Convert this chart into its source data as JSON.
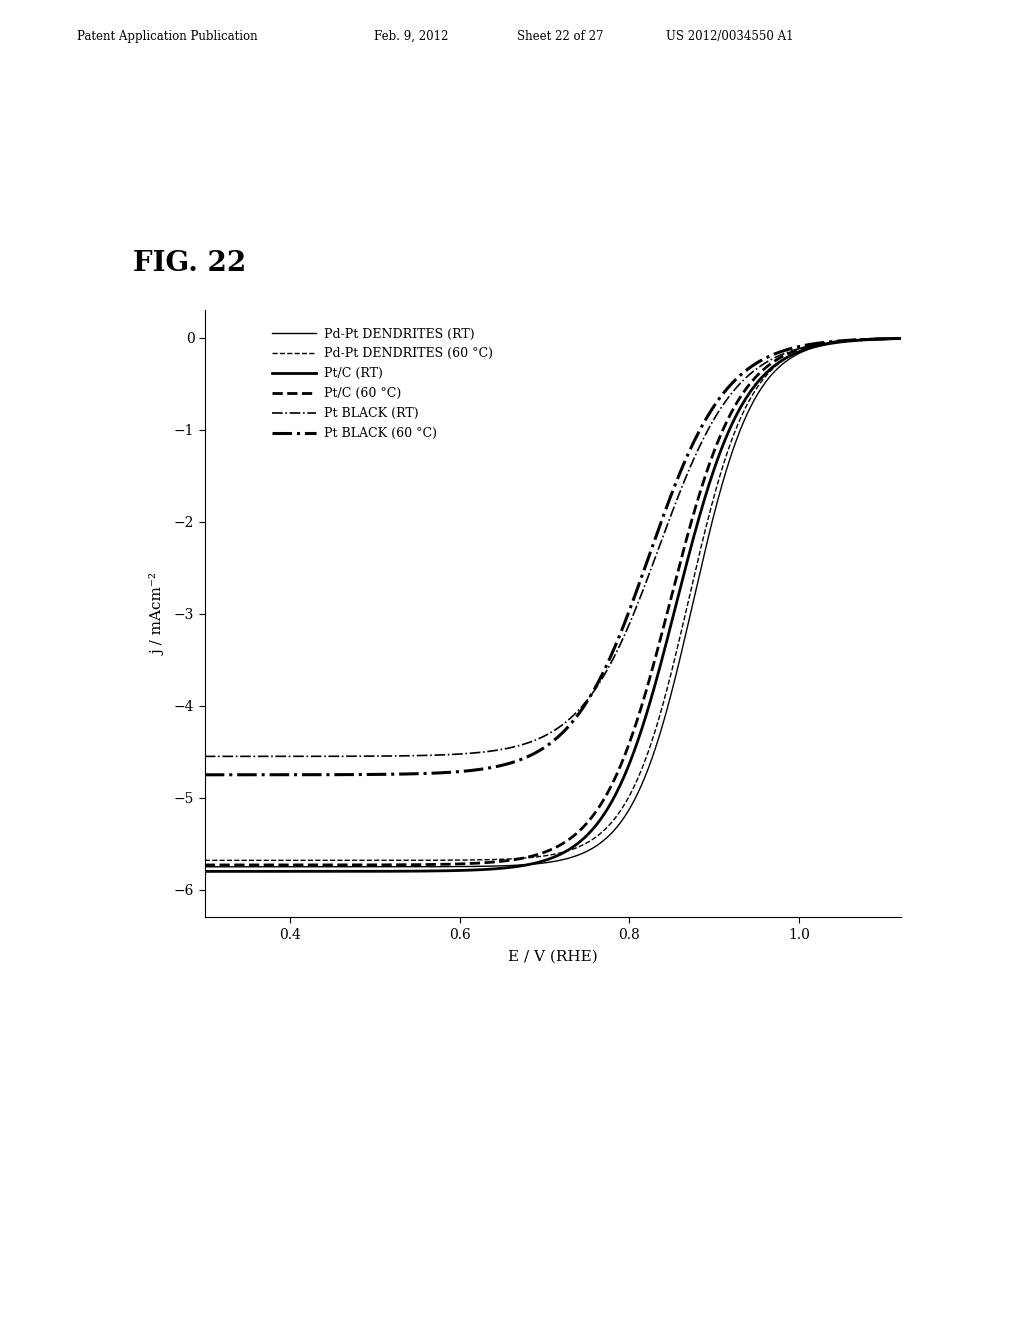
{
  "xlabel": "E / V (RHE)",
  "ylabel": "j / mAcm⁻²",
  "xlim": [
    0.3,
    1.12
  ],
  "ylim": [
    -6.3,
    0.3
  ],
  "xticks": [
    0.4,
    0.6,
    0.8,
    1.0
  ],
  "yticks": [
    0,
    -1,
    -2,
    -3,
    -4,
    -5,
    -6
  ],
  "background_color": "#ffffff",
  "header_text": "Patent Application Publication",
  "header_date": "Feb. 9, 2012",
  "header_sheet": "Sheet 22 of 27",
  "header_patent": "US 2012/0034550 A1",
  "fig_label": "FIG. 22",
  "legend_entries": [
    {
      "label": "Pd-Pt DENDRITES (RT)",
      "linestyle": "-",
      "linewidth": 1.0,
      "color": "#000000"
    },
    {
      "label": "Pd-Pt DENDRITES (60 °C)",
      "linestyle": "--",
      "linewidth": 1.0,
      "color": "#000000"
    },
    {
      "label": "Pt/C (RT)",
      "linestyle": "-",
      "linewidth": 2.0,
      "color": "#000000"
    },
    {
      "label": "Pt/C (60 °C)",
      "linestyle": "--",
      "linewidth": 2.0,
      "color": "#000000"
    },
    {
      "label": "Pt BLACK (RT)",
      "linestyle": "-.",
      "linewidth": 1.2,
      "color": "#000000"
    },
    {
      "label": "Pt BLACK (60 °C)",
      "linestyle": "-.",
      "linewidth": 2.2,
      "color": "#000000"
    }
  ],
  "curves": [
    {
      "name": "Pd-Pt DENDRITES (RT)",
      "linestyle": "-",
      "linewidth": 1.0,
      "color": "#000000",
      "plateau_y": -5.75,
      "half_wave": 0.875,
      "steepness": 28
    },
    {
      "name": "Pd-Pt DENDRITES (60 C)",
      "linestyle": "--",
      "linewidth": 1.0,
      "color": "#000000",
      "plateau_y": -5.68,
      "half_wave": 0.87,
      "steepness": 28
    },
    {
      "name": "Pt/C (RT)",
      "linestyle": "-",
      "linewidth": 2.0,
      "color": "#000000",
      "plateau_y": -5.8,
      "half_wave": 0.855,
      "steepness": 25
    },
    {
      "name": "Pt/C (60 C)",
      "linestyle": "--",
      "linewidth": 2.0,
      "color": "#000000",
      "plateau_y": -5.73,
      "half_wave": 0.848,
      "steepness": 25
    },
    {
      "name": "Pt BLACK (RT)",
      "linestyle": "-.",
      "linewidth": 1.2,
      "color": "#000000",
      "plateau_y": -4.55,
      "half_wave": 0.835,
      "steepness": 22
    },
    {
      "name": "Pt BLACK (60 C)",
      "linestyle": "-.",
      "linewidth": 2.2,
      "color": "#000000",
      "plateau_y": -4.75,
      "half_wave": 0.823,
      "steepness": 22
    }
  ]
}
